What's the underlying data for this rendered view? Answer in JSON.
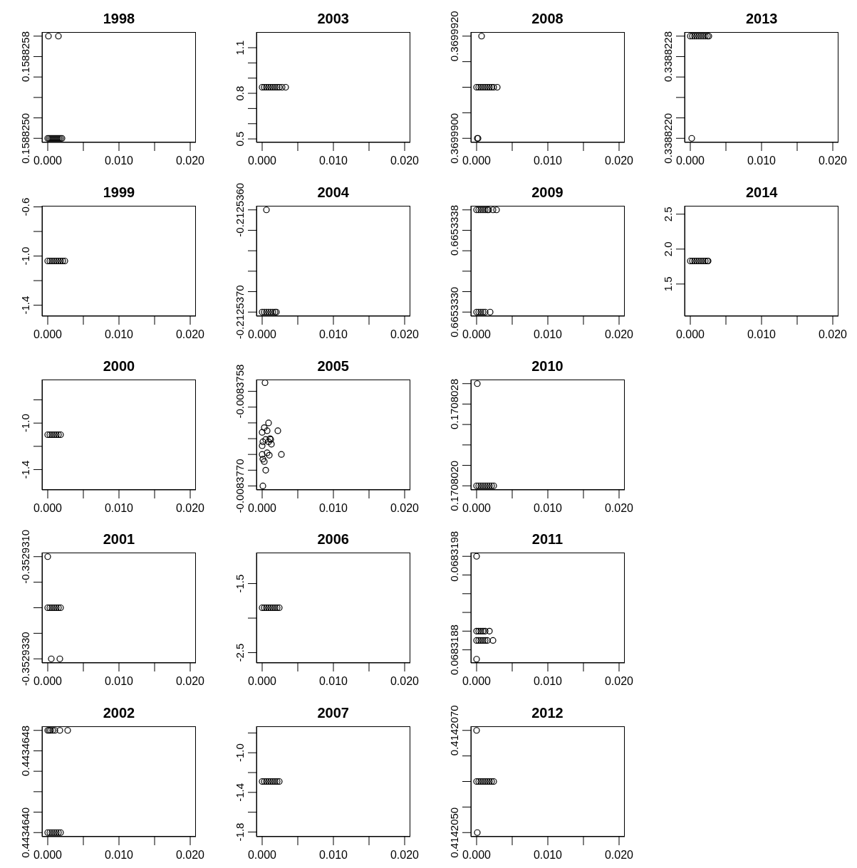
{
  "chart_data": [
    {
      "type": "scatter",
      "title": "1998",
      "marker": "circle",
      "color": "#000000",
      "x": [
        0.0001,
        0.0015,
        0,
        0.0002,
        0.0004,
        0.0006,
        0.0008,
        0.001,
        0.0012,
        0.0014,
        0.0016,
        0.0018,
        0.002
      ],
      "values": [
        0.158826,
        0.158826,
        0.158825,
        0.158825,
        0.158825,
        0.158825,
        0.158825,
        0.158825,
        0.158825,
        0.158825,
        0.158825,
        0.158825,
        0.158825
      ],
      "xlim": [
        -0.0008,
        0.0208
      ],
      "xticks": [
        {
          "value": 0,
          "label": "0.000"
        },
        {
          "value": 0.005,
          "label": null
        },
        {
          "value": 0.01,
          "label": "0.010"
        },
        {
          "value": 0.015,
          "label": null
        },
        {
          "value": 0.02,
          "label": "0.020"
        }
      ],
      "ylim": [
        0.15882496,
        0.15882604
      ],
      "yticks": [
        {
          "value": 0.158825,
          "label": "0.1588250"
        },
        {
          "value": 0.1588252,
          "label": null
        },
        {
          "value": 0.1588254,
          "label": null
        },
        {
          "value": 0.1588256,
          "label": null
        },
        0.1588258,
        {
          "value": 0.158826,
          "label": null
        }
      ]
    },
    {
      "type": "scatter",
      "title": "1999",
      "marker": "circle",
      "color": "#000000",
      "x": [
        0,
        0.0003,
        0.0006,
        0.0009,
        0.0012,
        0.0015,
        0.0018,
        0.0021,
        0.0024
      ],
      "values": [
        -1.04,
        -1.04,
        -1.04,
        -1.04,
        -1.04,
        -1.04,
        -1.04,
        -1.04,
        -1.04
      ],
      "xlim": [
        -0.0008,
        0.0208
      ],
      "xticks": [
        {
          "value": 0,
          "label": "0.000"
        },
        {
          "value": 0.005,
          "label": null
        },
        {
          "value": 0.01,
          "label": "0.010"
        },
        {
          "value": 0.015,
          "label": null
        },
        {
          "value": 0.02,
          "label": "0.020"
        }
      ],
      "ylim": [
        -1.489,
        -0.591
      ],
      "yticks": [
        -1.4,
        {
          "value": -1.2,
          "label": null
        },
        {
          "value": -1,
          "label": "-1.0"
        },
        {
          "value": -0.8,
          "label": null
        },
        -0.6
      ]
    },
    {
      "type": "scatter",
      "title": "2000",
      "marker": "circle",
      "color": "#000000",
      "x": [
        0,
        0.0003,
        0.0006,
        0.0009,
        0.0012,
        0.0015,
        0.0018
      ],
      "values": [
        -1.1,
        -1.1,
        -1.1,
        -1.1,
        -1.1,
        -1.1,
        -1.1
      ],
      "xlim": [
        -0.0008,
        0.0208
      ],
      "xticks": [
        {
          "value": 0,
          "label": "0.000"
        },
        {
          "value": 0.005,
          "label": null
        },
        {
          "value": 0.01,
          "label": "0.010"
        },
        {
          "value": 0.015,
          "label": null
        },
        {
          "value": 0.02,
          "label": "0.020"
        }
      ],
      "ylim": [
        -1.575,
        -0.625
      ],
      "yticks": [
        -1.4,
        {
          "value": -1.2,
          "label": null
        },
        {
          "value": -1,
          "label": "-1.0"
        },
        {
          "value": -0.8,
          "label": null
        }
      ]
    },
    {
      "type": "scatter",
      "title": "2001",
      "marker": "circle",
      "color": "#000000",
      "x": [
        0,
        0,
        0.0003,
        0.0006,
        0.0009,
        0.0012,
        0.0015,
        0.0018,
        0.0005,
        0.0017
      ],
      "values": [
        -0.352931,
        -0.352932,
        -0.352932,
        -0.352932,
        -0.352932,
        -0.352932,
        -0.352932,
        -0.352932,
        -0.352933,
        -0.352933
      ],
      "xlim": [
        -0.0008,
        0.0208
      ],
      "xticks": [
        {
          "value": 0,
          "label": "0.000"
        },
        {
          "value": 0.005,
          "label": null
        },
        {
          "value": 0.01,
          "label": "0.010"
        },
        {
          "value": 0.015,
          "label": null
        },
        {
          "value": 0.02,
          "label": "0.020"
        }
      ],
      "ylim": [
        -0.35293308,
        -0.35293092
      ],
      "yticks": [
        {
          "value": -0.352933,
          "label": "-0.3529330"
        },
        {
          "value": -0.3529325,
          "label": null
        },
        {
          "value": -0.352932,
          "label": null
        },
        {
          "value": -0.3529315,
          "label": null
        },
        {
          "value": -0.352931,
          "label": "-0.3529310"
        }
      ]
    },
    {
      "type": "scatter",
      "title": "2002",
      "marker": "circle",
      "color": "#000000",
      "x": [
        0,
        0.0002,
        0.0004,
        0.0007,
        0.001,
        0.0017,
        0.0028,
        0,
        0.0003,
        0.0006,
        0.0009,
        0.0012,
        0.0015,
        0.0018
      ],
      "values": [
        0.443465,
        0.443465,
        0.443465,
        0.443465,
        0.443465,
        0.443465,
        0.443465,
        0.443464,
        0.443464,
        0.443464,
        0.443464,
        0.443464,
        0.443464,
        0.443464
      ],
      "xlim": [
        -0.0008,
        0.0208
      ],
      "xticks": [
        {
          "value": 0,
          "label": "0.000"
        },
        {
          "value": 0.005,
          "label": null
        },
        {
          "value": 0.01,
          "label": "0.010"
        },
        {
          "value": 0.015,
          "label": null
        },
        {
          "value": 0.02,
          "label": "0.020"
        }
      ],
      "ylim": [
        0.44346396,
        0.44346504
      ],
      "yticks": [
        {
          "value": 0.443464,
          "label": "0.4434640"
        },
        {
          "value": 0.4434642,
          "label": null
        },
        {
          "value": 0.4434644,
          "label": null
        },
        {
          "value": 0.4434646,
          "label": null
        },
        0.4434648,
        {
          "value": 0.443465,
          "label": null
        }
      ]
    },
    {
      "type": "scatter",
      "title": "2003",
      "marker": "circle",
      "color": "#000000",
      "x": [
        0,
        0.0003,
        0.0006,
        0.0009,
        0.0012,
        0.0015,
        0.0018,
        0.0021,
        0.0024,
        0.0028,
        0.0033
      ],
      "values": [
        0.84,
        0.84,
        0.84,
        0.84,
        0.84,
        0.84,
        0.84,
        0.84,
        0.84,
        0.84,
        0.84
      ],
      "xlim": [
        -0.0008,
        0.0208
      ],
      "xticks": [
        {
          "value": 0,
          "label": "0.000"
        },
        {
          "value": 0.005,
          "label": null
        },
        {
          "value": 0.01,
          "label": "0.010"
        },
        {
          "value": 0.015,
          "label": null
        },
        {
          "value": 0.02,
          "label": "0.020"
        }
      ],
      "ylim": [
        0.477,
        1.203
      ],
      "yticks": [
        0.5,
        {
          "value": 0.6,
          "label": null
        },
        {
          "value": 0.7,
          "label": null
        },
        0.8,
        {
          "value": 0.9,
          "label": null
        },
        {
          "value": 1,
          "label": null
        },
        1.1
      ]
    },
    {
      "type": "scatter",
      "title": "2004",
      "marker": "circle",
      "color": "#000000",
      "x": [
        0.0006,
        0,
        0.0003,
        0.0006,
        0.0009,
        0.0012,
        0.0015,
        0.0018,
        0.002
      ],
      "values": [
        -0.212536,
        -0.212537,
        -0.212537,
        -0.212537,
        -0.212537,
        -0.212537,
        -0.212537,
        -0.212537,
        -0.212537
      ],
      "xlim": [
        -0.0008,
        0.0208
      ],
      "xticks": [
        {
          "value": 0,
          "label": "0.000"
        },
        {
          "value": 0.005,
          "label": null
        },
        {
          "value": 0.01,
          "label": "0.010"
        },
        {
          "value": 0.015,
          "label": null
        },
        {
          "value": 0.02,
          "label": "0.020"
        }
      ],
      "ylim": [
        -0.21253704,
        -0.21253596
      ],
      "yticks": [
        {
          "value": -0.212537,
          "label": "-0.2125370"
        },
        {
          "value": -0.2125368,
          "label": null
        },
        {
          "value": -0.2125366,
          "label": null
        },
        {
          "value": -0.2125364,
          "label": null
        },
        {
          "value": -0.2125362,
          "label": null
        },
        {
          "value": -0.212536,
          "label": "-0.2125360"
        }
      ]
    },
    {
      "type": "scatter",
      "title": "2005",
      "marker": "circle",
      "color": "#000000",
      "x": [
        0.0004,
        0.0009,
        0.0022,
        0.0027,
        0.0005,
        0.0001,
        0,
        0.0003,
        0.0007,
        0.0012,
        0.0013,
        0.001,
        0.0007,
        0,
        0.0001,
        0.0003,
        0,
        0.0001,
        0.0005,
        0.0009,
        0.0011
      ],
      "values": [
        -0.00837569,
        -0.0083762,
        -0.0083763,
        -0.0083766,
        -0.0083768,
        -0.008377,
        -0.00837632,
        -0.00837626,
        -0.0083763,
        -0.00837641,
        -0.00837647,
        -0.00837661,
        -0.00837658,
        -0.0083766,
        -0.00837666,
        -0.00837669,
        -0.00837649,
        -0.00837644,
        -0.00837641,
        -0.00837644,
        -0.0083764
      ],
      "xlim": [
        -0.0008,
        0.0208
      ],
      "xticks": [
        {
          "value": 0,
          "label": "0.000"
        },
        {
          "value": 0.005,
          "label": null
        },
        {
          "value": 0.01,
          "label": "0.010"
        },
        {
          "value": 0.015,
          "label": null
        },
        {
          "value": 0.02,
          "label": "0.020"
        }
      ],
      "ylim": [
        -0.00837705,
        -0.00837565
      ],
      "yticks": [
        {
          "value": -0.008377,
          "label": "-0.0083770"
        },
        {
          "value": -0.0083768,
          "label": null
        },
        {
          "value": -0.0083766,
          "label": null
        },
        {
          "value": -0.0083764,
          "label": null
        },
        {
          "value": -0.0083762,
          "label": null
        },
        {
          "value": -0.008376,
          "label": null
        },
        -0.0083758
      ]
    },
    {
      "type": "scatter",
      "title": "2006",
      "marker": "circle",
      "color": "#000000",
      "x": [
        0,
        0.0003,
        0.0006,
        0.0009,
        0.0012,
        0.0015,
        0.0018,
        0.0021,
        0.0024
      ],
      "values": [
        -1.85,
        -1.85,
        -1.85,
        -1.85,
        -1.85,
        -1.85,
        -1.85,
        -1.85,
        -1.85
      ],
      "xlim": [
        -0.0008,
        0.0208
      ],
      "xticks": [
        {
          "value": 0,
          "label": "0.000"
        },
        {
          "value": 0.005,
          "label": null
        },
        {
          "value": 0.01,
          "label": "0.010"
        },
        {
          "value": 0.015,
          "label": null
        },
        {
          "value": 0.02,
          "label": "0.020"
        }
      ],
      "ylim": [
        -2.649,
        -1.051
      ],
      "yticks": [
        -2.5,
        {
          "value": -2,
          "label": null
        },
        -1.5
      ]
    },
    {
      "type": "scatter",
      "title": "2007",
      "marker": "circle",
      "color": "#000000",
      "x": [
        0,
        0.0003,
        0.0006,
        0.0009,
        0.0012,
        0.0015,
        0.0018,
        0.0021,
        0.0024
      ],
      "values": [
        -1.29,
        -1.29,
        -1.29,
        -1.29,
        -1.29,
        -1.29,
        -1.29,
        -1.29,
        -1.29
      ],
      "xlim": [
        -0.0008,
        0.0208
      ],
      "xticks": [
        {
          "value": 0,
          "label": "0.000"
        },
        {
          "value": 0.005,
          "label": null
        },
        {
          "value": 0.01,
          "label": "0.010"
        },
        {
          "value": 0.015,
          "label": null
        },
        {
          "value": 0.02,
          "label": "0.020"
        }
      ],
      "ylim": [
        -1.847,
        -0.733
      ],
      "yticks": [
        -1.8,
        {
          "value": -1.6,
          "label": null
        },
        -1.4,
        {
          "value": -1.2,
          "label": null
        },
        {
          "value": -1,
          "label": "-1.0"
        },
        {
          "value": -0.8,
          "label": null
        }
      ]
    },
    {
      "type": "scatter",
      "title": "2008",
      "marker": "circle",
      "color": "#000000",
      "x": [
        0.0007,
        0,
        0.0003,
        0.0006,
        0.0009,
        0.0012,
        0.0015,
        0.0018,
        0.0021,
        0.0024,
        0.0029,
        0.0001,
        0.0002
      ],
      "values": [
        0.369992,
        0.369991,
        0.369991,
        0.369991,
        0.369991,
        0.369991,
        0.369991,
        0.369991,
        0.369991,
        0.369991,
        0.369991,
        0.36999,
        0.36999
      ],
      "xlim": [
        -0.0008,
        0.0208
      ],
      "xticks": [
        {
          "value": 0,
          "label": "0.000"
        },
        {
          "value": 0.005,
          "label": null
        },
        {
          "value": 0.01,
          "label": "0.010"
        },
        {
          "value": 0.015,
          "label": null
        },
        {
          "value": 0.02,
          "label": "0.020"
        }
      ],
      "ylim": [
        0.36998992,
        0.36999208
      ],
      "yticks": [
        {
          "value": 0.36999,
          "label": "0.3699900"
        },
        {
          "value": 0.3699905,
          "label": null
        },
        {
          "value": 0.369991,
          "label": null
        },
        {
          "value": 0.3699915,
          "label": null
        },
        {
          "value": 0.369992,
          "label": "0.3699920"
        }
      ]
    },
    {
      "type": "scatter",
      "title": "2009",
      "marker": "circle",
      "color": "#000000",
      "x": [
        0,
        0.0003,
        0.0006,
        0.0009,
        0.0012,
        0.0015,
        0.0017,
        0.0023,
        0.0028,
        0,
        0.0003,
        0.0006,
        0.0009,
        0.0012,
        0.0019
      ],
      "values": [
        0.665334,
        0.665334,
        0.665334,
        0.665334,
        0.665334,
        0.665334,
        0.665334,
        0.665334,
        0.665334,
        0.665333,
        0.665333,
        0.665333,
        0.665333,
        0.665333,
        0.665333
      ],
      "xlim": [
        -0.0008,
        0.0208
      ],
      "xticks": [
        {
          "value": 0,
          "label": "0.000"
        },
        {
          "value": 0.005,
          "label": null
        },
        {
          "value": 0.01,
          "label": "0.010"
        },
        {
          "value": 0.015,
          "label": null
        },
        {
          "value": 0.02,
          "label": "0.020"
        }
      ],
      "ylim": [
        0.66533296,
        0.66533404
      ],
      "yticks": [
        {
          "value": 0.665333,
          "label": "0.6653330"
        },
        {
          "value": 0.6653332,
          "label": null
        },
        {
          "value": 0.6653334,
          "label": null
        },
        {
          "value": 0.6653336,
          "label": null
        },
        0.6653338,
        {
          "value": 0.665334,
          "label": null
        }
      ]
    },
    {
      "type": "scatter",
      "title": "2010",
      "marker": "circle",
      "color": "#000000",
      "x": [
        0.0001,
        0,
        0.0003,
        0.0006,
        0.0009,
        0.0012,
        0.0015,
        0.0018,
        0.0021,
        0.0024
      ],
      "values": [
        0.170803,
        0.170802,
        0.170802,
        0.170802,
        0.170802,
        0.170802,
        0.170802,
        0.170802,
        0.170802,
        0.170802
      ],
      "xlim": [
        -0.0008,
        0.0208
      ],
      "xticks": [
        {
          "value": 0,
          "label": "0.000"
        },
        {
          "value": 0.005,
          "label": null
        },
        {
          "value": 0.01,
          "label": "0.010"
        },
        {
          "value": 0.015,
          "label": null
        },
        {
          "value": 0.02,
          "label": "0.020"
        }
      ],
      "ylim": [
        0.17080196,
        0.17080304
      ],
      "yticks": [
        {
          "value": 0.170802,
          "label": "0.1708020"
        },
        {
          "value": 0.1708022,
          "label": null
        },
        {
          "value": 0.1708024,
          "label": null
        },
        {
          "value": 0.1708026,
          "label": null
        },
        0.1708028,
        {
          "value": 0.170803,
          "label": null
        }
      ]
    },
    {
      "type": "scatter",
      "title": "2011",
      "marker": "circle",
      "color": "#000000",
      "x": [
        0,
        0,
        0.0003,
        0.0006,
        0.0009,
        0.0012,
        0.0018,
        0,
        0.0003,
        0.0006,
        0.0009,
        0.0012,
        0.0015,
        0.0023,
        0
      ],
      "values": [
        0.0683198,
        0.068319,
        0.068319,
        0.068319,
        0.068319,
        0.068319,
        0.068319,
        0.0683189,
        0.0683189,
        0.0683189,
        0.0683189,
        0.0683189,
        0.0683189,
        0.0683189,
        0.0683187
      ],
      "xlim": [
        -0.0008,
        0.0208
      ],
      "xticks": [
        {
          "value": 0,
          "label": "0.000"
        },
        {
          "value": 0.005,
          "label": null
        },
        {
          "value": 0.01,
          "label": "0.010"
        },
        {
          "value": 0.015,
          "label": null
        },
        {
          "value": 0.02,
          "label": "0.020"
        }
      ],
      "ylim": [
        0.06831866,
        0.06831984
      ],
      "yticks": [
        0.0683188,
        {
          "value": 0.068319,
          "label": null
        },
        {
          "value": 0.0683192,
          "label": null
        },
        {
          "value": 0.0683194,
          "label": null
        },
        {
          "value": 0.0683196,
          "label": null
        },
        0.0683198
      ]
    },
    {
      "type": "scatter",
      "title": "2012",
      "marker": "circle",
      "color": "#000000",
      "x": [
        0,
        0,
        0.0003,
        0.0006,
        0.0009,
        0.0012,
        0.0015,
        0.0018,
        0.0021,
        0.0024,
        0.0001
      ],
      "values": [
        0.414207,
        0.414206,
        0.414206,
        0.414206,
        0.414206,
        0.414206,
        0.414206,
        0.414206,
        0.414206,
        0.414206,
        0.414205
      ],
      "xlim": [
        -0.0008,
        0.0208
      ],
      "xticks": [
        {
          "value": 0,
          "label": "0.000"
        },
        {
          "value": 0.005,
          "label": null
        },
        {
          "value": 0.01,
          "label": "0.010"
        },
        {
          "value": 0.015,
          "label": null
        },
        {
          "value": 0.02,
          "label": "0.020"
        }
      ],
      "ylim": [
        0.41420492,
        0.41420708
      ],
      "yticks": [
        {
          "value": 0.414205,
          "label": "0.4142050"
        },
        {
          "value": 0.4142055,
          "label": null
        },
        {
          "value": 0.414206,
          "label": null
        },
        {
          "value": 0.4142065,
          "label": null
        },
        {
          "value": 0.414207,
          "label": "0.4142070"
        }
      ]
    },
    {
      "type": "scatter",
      "title": "2013",
      "marker": "circle",
      "color": "#000000",
      "x": [
        0,
        0.0003,
        0.0006,
        0.0009,
        0.0012,
        0.0015,
        0.0018,
        0.0021,
        0.0024,
        0.0026,
        0.0002
      ],
      "values": [
        0.338823,
        0.338823,
        0.338823,
        0.338823,
        0.338823,
        0.338823,
        0.338823,
        0.338823,
        0.338823,
        0.338823,
        0.338822
      ],
      "xlim": [
        -0.0008,
        0.0208
      ],
      "xticks": [
        {
          "value": 0,
          "label": "0.000"
        },
        {
          "value": 0.005,
          "label": null
        },
        {
          "value": 0.01,
          "label": "0.010"
        },
        {
          "value": 0.015,
          "label": null
        },
        {
          "value": 0.02,
          "label": "0.020"
        }
      ],
      "ylim": [
        0.33882196,
        0.33882304
      ],
      "yticks": [
        {
          "value": 0.338822,
          "label": "0.3388220"
        },
        {
          "value": 0.3388222,
          "label": null
        },
        {
          "value": 0.3388224,
          "label": null
        },
        {
          "value": 0.3388226,
          "label": null
        },
        0.3388228,
        {
          "value": 0.338823,
          "label": null
        }
      ]
    },
    {
      "type": "scatter",
      "title": "2014",
      "marker": "circle",
      "color": "#000000",
      "x": [
        0,
        0.0003,
        0.0006,
        0.0009,
        0.0012,
        0.0015,
        0.0018,
        0.0021,
        0.0024,
        0.0025
      ],
      "values": [
        1.83,
        1.83,
        1.83,
        1.83,
        1.83,
        1.83,
        1.83,
        1.83,
        1.83,
        1.83
      ],
      "xlim": [
        -0.0008,
        0.0208
      ],
      "xticks": [
        {
          "value": 0,
          "label": "0.000"
        },
        {
          "value": 0.005,
          "label": null
        },
        {
          "value": 0.01,
          "label": "0.010"
        },
        {
          "value": 0.015,
          "label": null
        },
        {
          "value": 0.02,
          "label": "0.020"
        }
      ],
      "ylim": [
        1.04,
        2.62
      ],
      "yticks": [
        1.5,
        {
          "value": 2,
          "label": "2.0"
        },
        2.5
      ]
    }
  ]
}
